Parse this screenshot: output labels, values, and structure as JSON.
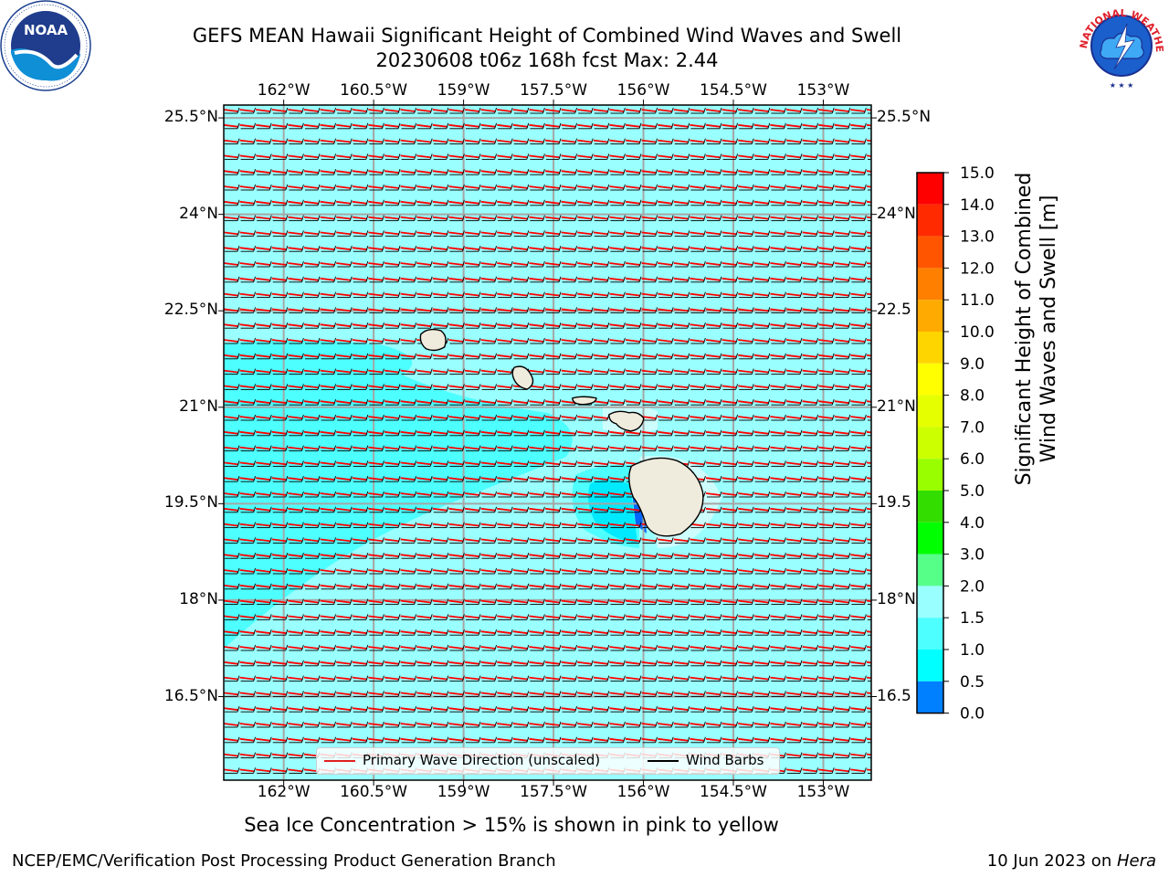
{
  "title": {
    "line1": "GEFS MEAN Hawaii Significant Height of Combined Wind Waves and Swell",
    "line2": "20230608 t06z 168h fcst   Max: 2.44"
  },
  "map": {
    "lon_ticks": [
      "162°W",
      "160.5°W",
      "159°W",
      "157.5°W",
      "156°W",
      "154.5°W",
      "153°W"
    ],
    "lon_values": [
      -162,
      -160.5,
      -159,
      -157.5,
      -156,
      -154.5,
      -153
    ],
    "lat_ticks_left": [
      "25.5°N",
      "24°N",
      "22.5°N",
      "21°N",
      "19.5°N",
      "18°N",
      "16.5°N"
    ],
    "lat_ticks_right": [
      "25.5°N",
      "24°N",
      "22.5",
      "21°N",
      "19.5",
      "18°N",
      "16.5"
    ],
    "lat_values": [
      25.5,
      24,
      22.5,
      21,
      19.5,
      18,
      16.5
    ],
    "extent": {
      "lon_min": -163,
      "lon_max": -152.2,
      "lat_min": 15.2,
      "lat_max": 25.7
    },
    "background_color": "#99ffff",
    "swell_band_color": "#4dffff",
    "land_color": "#efebdd",
    "wave_arrow_color": "#ff0000",
    "barb_color": "#000000",
    "islands": [
      {
        "name": "Kauai",
        "lon": -159.5,
        "lat": 22.05
      },
      {
        "name": "Oahu",
        "lon": -158.0,
        "lat": 21.45
      },
      {
        "name": "Molokai",
        "lon": -157.0,
        "lat": 21.1
      },
      {
        "name": "Maui",
        "lon": -156.3,
        "lat": 20.8
      },
      {
        "name": "Hawaii",
        "lon": -155.5,
        "lat": 19.6
      }
    ]
  },
  "legend": {
    "wave_label": "Primary Wave Direction (unscaled)",
    "barb_label": "Wind Barbs"
  },
  "colorbar": {
    "label_line1": "Significant Height of Combined",
    "label_line2": "Wind Waves and Swell [m]",
    "ticks": [
      "15.0",
      "14.0",
      "13.0",
      "12.0",
      "11.0",
      "10.0",
      "9.0",
      "8.0",
      "7.0",
      "6.0",
      "5.0",
      "4.0",
      "3.0",
      "2.0",
      "1.5",
      "1.0",
      "0.5",
      "0.0"
    ],
    "colors": [
      "#ff0000",
      "#ff2a00",
      "#ff5500",
      "#ff8000",
      "#ffaa00",
      "#ffd500",
      "#ffff00",
      "#e6ff00",
      "#ccff00",
      "#99ff00",
      "#33dd00",
      "#00ff00",
      "#55ff88",
      "#99ffff",
      "#4dffff",
      "#00ffff",
      "#007fff",
      "#0000ff"
    ]
  },
  "note": "Sea Ice Concentration > 15% is shown in pink to yellow",
  "footer": {
    "left": "NCEP/EMC/Verification Post Processing Product Generation Branch",
    "date": "10 Jun 2023 on ",
    "machine": "Hera"
  },
  "logos": {
    "noaa_text": "NOAA",
    "nws_text": "NATIONAL WEATHER SERVICE"
  }
}
